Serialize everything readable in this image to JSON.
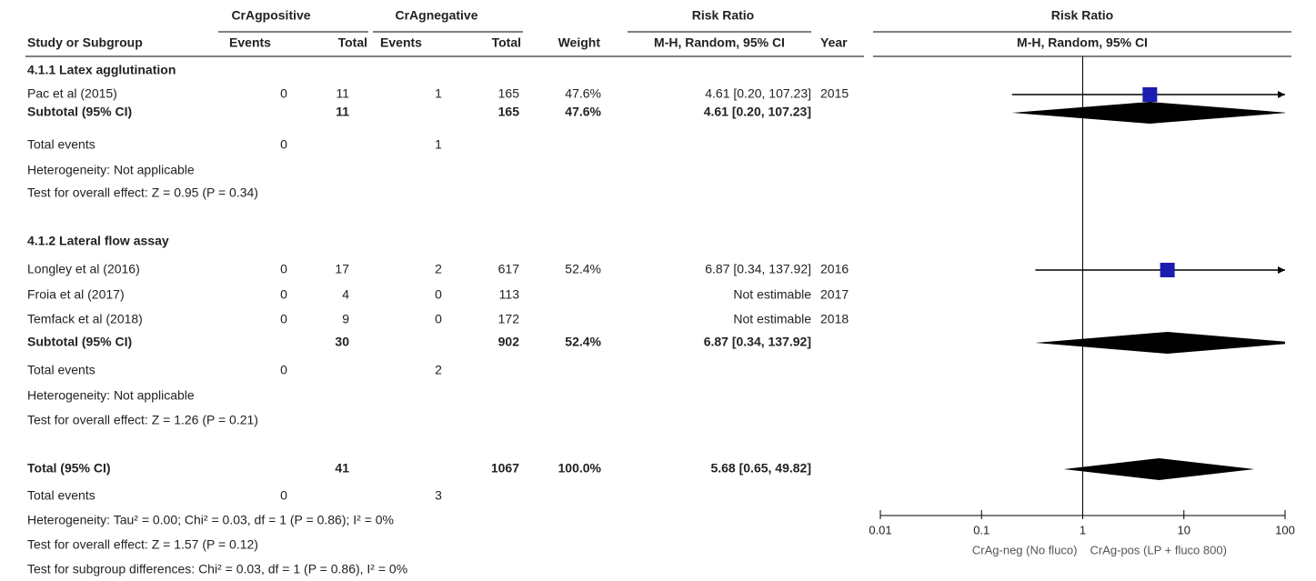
{
  "header": {
    "group1": "CrAgpositive",
    "group2": "CrAgnegative",
    "rr_title": "Risk Ratio",
    "rr_method": "M-H, Random, 95% CI",
    "plot_title": "Risk Ratio",
    "plot_method": "M-H, Random, 95% CI",
    "columns": {
      "study": "Study or Subgroup",
      "e1": "Events",
      "t1": "Total",
      "e2": "Events",
      "t2": "Total",
      "weight": "Weight",
      "ci": "M-H, Random, 95% CI",
      "year": "Year"
    }
  },
  "rows": [
    {
      "cells": {
        "study": "4.1.1 Latex agglutination"
      },
      "bold": true
    },
    {
      "cells": {
        "study": "Pac et al (2015)",
        "e1": 0,
        "t1": 11,
        "e2": 1,
        "t2": 165,
        "weight": "47.6%",
        "ci": "4.61 [0.20, 107.23]",
        "year": 2015
      },
      "estimate": {
        "rr": 4.61,
        "lo": 0.2,
        "hi": 107.23,
        "mark": "square"
      }
    },
    {
      "cells": {
        "study": "Subtotal (95% CI)",
        "t1": 11,
        "t2": 165,
        "weight": "47.6%",
        "ci": "4.61 [0.20, 107.23]"
      },
      "bold": true,
      "estimate": {
        "rr": 4.61,
        "lo": 0.2,
        "hi": 107.23,
        "mark": "diamond"
      }
    },
    {
      "cells": {
        "study": "Total events",
        "e1": 0,
        "e2": 1
      }
    },
    {
      "cells": {
        "study": "Heterogeneity: Not applicable"
      }
    },
    {
      "cells": {
        "study": "Test for overall effect: Z = 0.95 (P = 0.34)"
      }
    },
    {
      "cells": {
        "study": "4.1.2 Lateral flow assay"
      },
      "bold": true
    },
    {
      "cells": {
        "study": "Longley et al (2016)",
        "e1": 0,
        "t1": 17,
        "e2": 2,
        "t2": 617,
        "weight": "52.4%",
        "ci": "6.87 [0.34, 137.92]",
        "year": 2016
      },
      "estimate": {
        "rr": 6.87,
        "lo": 0.34,
        "hi": 137.92,
        "mark": "square"
      }
    },
    {
      "cells": {
        "study": "Froia et al (2017)",
        "e1": 0,
        "t1": 4,
        "e2": 0,
        "t2": 113,
        "ci": "Not estimable",
        "year": 2017
      }
    },
    {
      "cells": {
        "study": "Temfack et al (2018)",
        "e1": 0,
        "t1": 9,
        "e2": 0,
        "t2": 172,
        "ci": "Not estimable",
        "year": 2018
      }
    },
    {
      "cells": {
        "study": "Subtotal (95% CI)",
        "t1": 30,
        "t2": 902,
        "weight": "52.4%",
        "ci": "6.87 [0.34, 137.92]"
      },
      "bold": true,
      "estimate": {
        "rr": 6.87,
        "lo": 0.34,
        "hi": 137.92,
        "mark": "diamond"
      }
    },
    {
      "cells": {
        "study": "Total events",
        "e1": 0,
        "e2": 2
      }
    },
    {
      "cells": {
        "study": "Heterogeneity: Not applicable"
      }
    },
    {
      "cells": {
        "study": "Test for overall effect: Z = 1.26 (P = 0.21)"
      }
    },
    {
      "cells": {
        "study": "Total (95% CI)",
        "t1": 41,
        "t2": 1067,
        "weight": "100.0%",
        "ci": "5.68 [0.65, 49.82]"
      },
      "bold": true,
      "estimate": {
        "rr": 5.68,
        "lo": 0.65,
        "hi": 49.82,
        "mark": "diamond"
      }
    },
    {
      "cells": {
        "study": "Total events",
        "e1": 0,
        "e2": 3
      }
    },
    {
      "cells": {
        "study": "Heterogeneity: Tau² = 0.00; Chi² = 0.03, df = 1 (P = 0.86); I² = 0%"
      }
    },
    {
      "cells": {
        "study": "Test for overall effect: Z = 1.57 (P = 0.12)"
      }
    },
    {
      "cells": {
        "study": "Test for subgroup differences: Chi² = 0.03, df = 1 (P = 0.86), I² = 0%"
      }
    }
  ],
  "plot": {
    "log_scale": true,
    "xlim": [
      0.01,
      100
    ],
    "xticks": [
      0.01,
      0.1,
      1,
      10,
      100
    ],
    "square_color": "#1c1cb0",
    "diamond_color": "#000000",
    "xlabel_left": "CrAg-neg (No fluco)",
    "xlabel_right": "CrAg-pos (LP + fluco 800)"
  }
}
